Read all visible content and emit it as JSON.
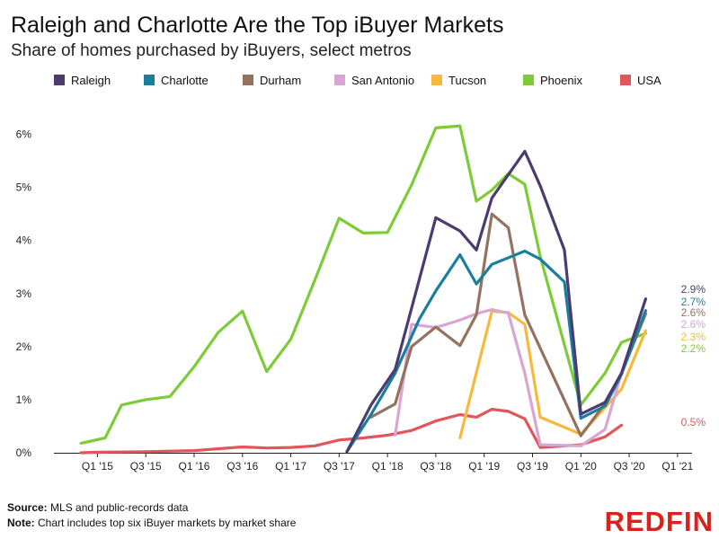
{
  "title": "Raleigh and Charlotte Are the Top iBuyer Markets",
  "subtitle": "Share of homes purchased by iBuyers, select metros",
  "footer": {
    "source_label": "Source:",
    "source_text": " MLS and public-records data",
    "note_label": "Note:",
    "note_text": " Chart includes top six iBuyer markets by market share"
  },
  "logo": "REDFIN",
  "chart_data": {
    "type": "line",
    "title": "Raleigh and Charlotte Are the Top iBuyer Markets",
    "subtitle": "Share of homes purchased by iBuyers, select metros",
    "xlabel": "",
    "ylabel": "",
    "ylim": [
      0,
      6.5
    ],
    "y_ticks": [
      "0%",
      "1%",
      "2%",
      "3%",
      "4%",
      "5%",
      "6%"
    ],
    "x_tick_labels": [
      "Q1 '15",
      "Q3 '15",
      "Q1 '16",
      "Q3 '16",
      "Q1 '17",
      "Q3 '17",
      "Q1 '18",
      "Q3 '18",
      "Q1 '19",
      "Q3 '19",
      "Q1 '20",
      "Q3 '20",
      "Q1 '21"
    ],
    "x_tick_values": [
      2015.0,
      2015.5,
      2016.0,
      2016.5,
      2017.0,
      2017.5,
      2018.0,
      2018.5,
      2019.0,
      2019.5,
      2020.0,
      2020.5,
      2021.0
    ],
    "xlim": [
      2014.55,
      2021.15
    ],
    "legend_position": "top",
    "grid": false,
    "series": [
      {
        "name": "Raleigh",
        "color": "#4b3b6e",
        "end_label": "2.9%",
        "points": [
          [
            2017.58,
            0.02
          ],
          [
            2017.83,
            0.9
          ],
          [
            2018.08,
            1.57
          ],
          [
            2018.33,
            3.27
          ],
          [
            2018.5,
            4.43
          ],
          [
            2018.75,
            4.18
          ],
          [
            2018.92,
            3.82
          ],
          [
            2019.08,
            4.8
          ],
          [
            2019.42,
            5.68
          ],
          [
            2019.58,
            5.03
          ],
          [
            2019.83,
            3.82
          ],
          [
            2020.0,
            0.73
          ],
          [
            2020.25,
            0.95
          ],
          [
            2020.42,
            1.5
          ],
          [
            2020.67,
            2.9
          ]
        ]
      },
      {
        "name": "Charlotte",
        "color": "#1a7f9c",
        "end_label": "2.7%",
        "points": [
          [
            2017.58,
            0.02
          ],
          [
            2017.83,
            0.72
          ],
          [
            2018.08,
            1.5
          ],
          [
            2018.33,
            2.52
          ],
          [
            2018.5,
            3.05
          ],
          [
            2018.75,
            3.73
          ],
          [
            2018.92,
            3.18
          ],
          [
            2019.08,
            3.55
          ],
          [
            2019.42,
            3.8
          ],
          [
            2019.58,
            3.65
          ],
          [
            2019.83,
            3.22
          ],
          [
            2020.0,
            0.65
          ],
          [
            2020.25,
            0.88
          ],
          [
            2020.42,
            1.48
          ],
          [
            2020.67,
            2.68
          ]
        ]
      },
      {
        "name": "Durham",
        "color": "#957260",
        "end_label": "2.6%",
        "points": [
          [
            2017.83,
            0.67
          ],
          [
            2018.08,
            0.92
          ],
          [
            2018.25,
            2.0
          ],
          [
            2018.5,
            2.37
          ],
          [
            2018.75,
            2.02
          ],
          [
            2018.92,
            2.6
          ],
          [
            2019.08,
            4.5
          ],
          [
            2019.25,
            4.24
          ],
          [
            2019.42,
            2.6
          ],
          [
            2020.0,
            0.32
          ],
          [
            2020.25,
            0.93
          ],
          [
            2020.42,
            1.5
          ],
          [
            2020.67,
            2.62
          ]
        ]
      },
      {
        "name": "San Antonio",
        "color": "#d7a6d4",
        "end_label": "2.6%",
        "points": [
          [
            2018.08,
            0.33
          ],
          [
            2018.25,
            2.42
          ],
          [
            2018.5,
            2.36
          ],
          [
            2018.75,
            2.5
          ],
          [
            2018.92,
            2.62
          ],
          [
            2019.08,
            2.7
          ],
          [
            2019.25,
            2.63
          ],
          [
            2019.42,
            1.5
          ],
          [
            2019.58,
            0.15
          ],
          [
            2020.0,
            0.13
          ],
          [
            2020.25,
            0.44
          ],
          [
            2020.42,
            1.5
          ],
          [
            2020.67,
            2.62
          ]
        ]
      },
      {
        "name": "Tucson",
        "color": "#f6b93b",
        "end_label": "2.3%",
        "points": [
          [
            2018.75,
            0.28
          ],
          [
            2019.08,
            2.67
          ],
          [
            2019.25,
            2.64
          ],
          [
            2019.42,
            2.42
          ],
          [
            2019.58,
            0.67
          ],
          [
            2020.0,
            0.35
          ],
          [
            2020.25,
            0.85
          ],
          [
            2020.42,
            1.2
          ],
          [
            2020.67,
            2.3
          ]
        ]
      },
      {
        "name": "Phoenix",
        "color": "#7ccb37",
        "end_label": "2.2%",
        "points": [
          [
            2014.83,
            0.18
          ],
          [
            2015.08,
            0.28
          ],
          [
            2015.25,
            0.9
          ],
          [
            2015.5,
            1.0
          ],
          [
            2015.75,
            1.06
          ],
          [
            2016.0,
            1.62
          ],
          [
            2016.25,
            2.27
          ],
          [
            2016.5,
            2.67
          ],
          [
            2016.75,
            1.53
          ],
          [
            2017.0,
            2.14
          ],
          [
            2017.25,
            3.26
          ],
          [
            2017.5,
            4.42
          ],
          [
            2017.75,
            4.14
          ],
          [
            2018.0,
            4.15
          ],
          [
            2018.25,
            5.05
          ],
          [
            2018.5,
            6.12
          ],
          [
            2018.75,
            6.16
          ],
          [
            2018.92,
            4.74
          ],
          [
            2019.08,
            4.95
          ],
          [
            2019.25,
            5.26
          ],
          [
            2019.42,
            5.06
          ],
          [
            2019.58,
            3.7
          ],
          [
            2020.0,
            0.9
          ],
          [
            2020.25,
            1.5
          ],
          [
            2020.42,
            2.08
          ],
          [
            2020.67,
            2.25
          ]
        ]
      },
      {
        "name": "USA",
        "color": "#e2555a",
        "end_label": "0.5%",
        "points": [
          [
            2014.83,
            0.0
          ],
          [
            2015.0,
            0.01
          ],
          [
            2015.5,
            0.02
          ],
          [
            2016.0,
            0.04
          ],
          [
            2016.5,
            0.11
          ],
          [
            2016.75,
            0.09
          ],
          [
            2017.0,
            0.1
          ],
          [
            2017.25,
            0.13
          ],
          [
            2017.5,
            0.24
          ],
          [
            2017.75,
            0.28
          ],
          [
            2018.0,
            0.33
          ],
          [
            2018.25,
            0.42
          ],
          [
            2018.5,
            0.6
          ],
          [
            2018.75,
            0.72
          ],
          [
            2018.92,
            0.67
          ],
          [
            2019.08,
            0.82
          ],
          [
            2019.25,
            0.78
          ],
          [
            2019.42,
            0.64
          ],
          [
            2019.58,
            0.1
          ],
          [
            2020.0,
            0.15
          ],
          [
            2020.25,
            0.3
          ],
          [
            2020.42,
            0.52
          ]
        ]
      }
    ]
  }
}
